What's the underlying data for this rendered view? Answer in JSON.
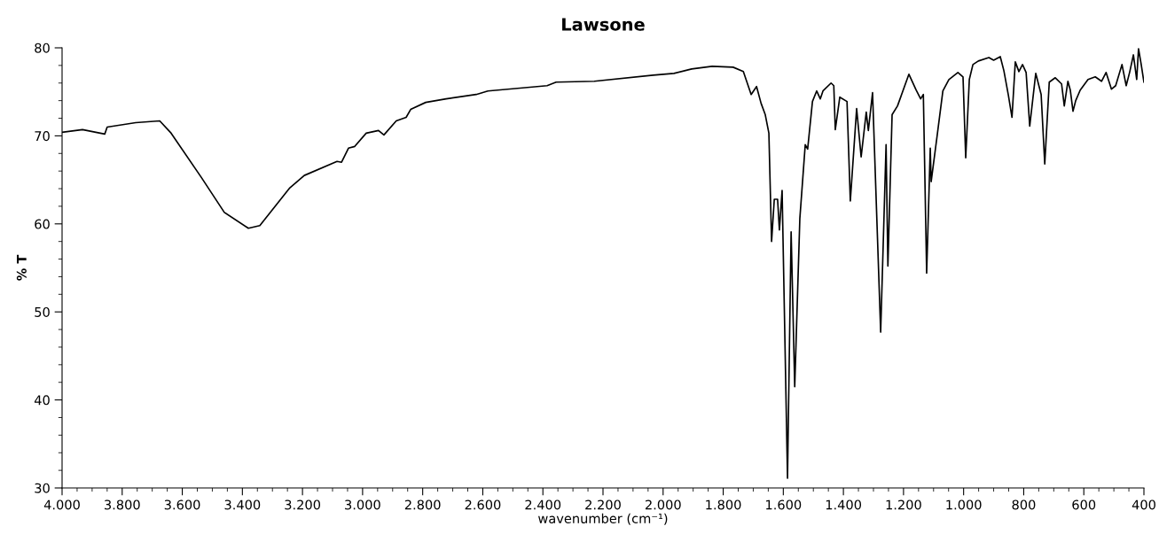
{
  "chart_data": {
    "type": "line",
    "title": "Lawsone",
    "xlabel": "wavenumber (cm⁻¹)",
    "ylabel": "% T",
    "xlim": [
      4000,
      400
    ],
    "ylim": [
      30,
      80
    ],
    "xticks": [
      {
        "value": 4000,
        "label": "4.000"
      },
      {
        "value": 3800,
        "label": "3.800"
      },
      {
        "value": 3600,
        "label": "3.600"
      },
      {
        "value": 3400,
        "label": "3.400"
      },
      {
        "value": 3200,
        "label": "3.200"
      },
      {
        "value": 3000,
        "label": "3.000"
      },
      {
        "value": 2800,
        "label": "2.800"
      },
      {
        "value": 2600,
        "label": "2.600"
      },
      {
        "value": 2400,
        "label": "2.400"
      },
      {
        "value": 2200,
        "label": "2.200"
      },
      {
        "value": 2000,
        "label": "2.000"
      },
      {
        "value": 1800,
        "label": "1.800"
      },
      {
        "value": 1600,
        "label": "1.600"
      },
      {
        "value": 1400,
        "label": "1.400"
      },
      {
        "value": 1200,
        "label": "1.200"
      },
      {
        "value": 1000,
        "label": "1.000"
      },
      800,
      600,
      400
    ],
    "yticks": [
      30,
      40,
      50,
      60,
      70,
      80
    ],
    "grid": false,
    "legend": false,
    "series": [
      {
        "color": "#000000",
        "x": [
          4000,
          3932,
          3858,
          3850,
          3755,
          3675,
          3637,
          3537,
          3460,
          3380,
          3342,
          3242,
          3194,
          3085,
          3070,
          3047,
          3026,
          2988,
          2947,
          2929,
          2888,
          2855,
          2840,
          2790,
          2722,
          2622,
          2583,
          2386,
          2356,
          2229,
          2033,
          1964,
          1905,
          1837,
          1767,
          1733,
          1707,
          1689,
          1674,
          1660,
          1648,
          1639,
          1630,
          1619,
          1613,
          1604,
          1586,
          1574,
          1562,
          1545,
          1527,
          1519,
          1503,
          1489,
          1477,
          1468,
          1441,
          1432,
          1427,
          1412,
          1388,
          1377,
          1356,
          1341,
          1324,
          1317,
          1303,
          1276,
          1258,
          1252,
          1238,
          1220,
          1182,
          1158,
          1143,
          1134,
          1123,
          1111,
          1108,
          1087,
          1069,
          1049,
          1019,
          1002,
          993,
          981,
          969,
          951,
          916,
          900,
          878,
          866,
          851,
          839,
          828,
          816,
          804,
          792,
          780,
          760,
          742,
          730,
          715,
          695,
          674,
          665,
          653,
          645,
          636,
          627,
          612,
          586,
          562,
          541,
          526,
          508,
          494,
          473,
          459,
          447,
          435,
          424,
          418,
          409,
          400
        ],
        "values": [
          70.4,
          70.7,
          70.2,
          71.0,
          71.5,
          71.7,
          70.3,
          65.3,
          61.3,
          59.5,
          59.8,
          64.1,
          65.5,
          67.1,
          67.0,
          68.6,
          68.8,
          70.3,
          70.6,
          70.1,
          71.7,
          72.1,
          73.0,
          73.8,
          74.2,
          74.7,
          75.1,
          75.7,
          76.1,
          76.2,
          76.9,
          77.1,
          77.6,
          77.9,
          77.8,
          77.3,
          74.7,
          75.6,
          73.7,
          72.4,
          70.3,
          58.0,
          62.8,
          62.8,
          59.3,
          63.8,
          31.1,
          59.1,
          41.5,
          60.6,
          69.0,
          68.5,
          73.9,
          75.1,
          74.2,
          75.1,
          76.0,
          75.7,
          70.7,
          74.4,
          73.9,
          62.6,
          73.1,
          67.6,
          72.7,
          70.6,
          74.9,
          47.7,
          69.0,
          55.2,
          72.4,
          73.4,
          77.0,
          75.2,
          74.2,
          74.7,
          54.4,
          68.6,
          64.8,
          70.3,
          75.1,
          76.4,
          77.2,
          76.7,
          67.5,
          76.4,
          78.1,
          78.5,
          78.9,
          78.6,
          79.0,
          77.4,
          74.6,
          72.1,
          78.4,
          77.3,
          78.1,
          77.2,
          71.1,
          77.1,
          74.7,
          66.8,
          76.1,
          76.6,
          75.9,
          73.4,
          76.2,
          75.2,
          72.8,
          74.0,
          75.2,
          76.4,
          76.7,
          76.2,
          77.2,
          75.3,
          75.7,
          78.1,
          75.7,
          77.3,
          79.2,
          76.4,
          79.9,
          78.1,
          76.1
        ]
      }
    ]
  }
}
